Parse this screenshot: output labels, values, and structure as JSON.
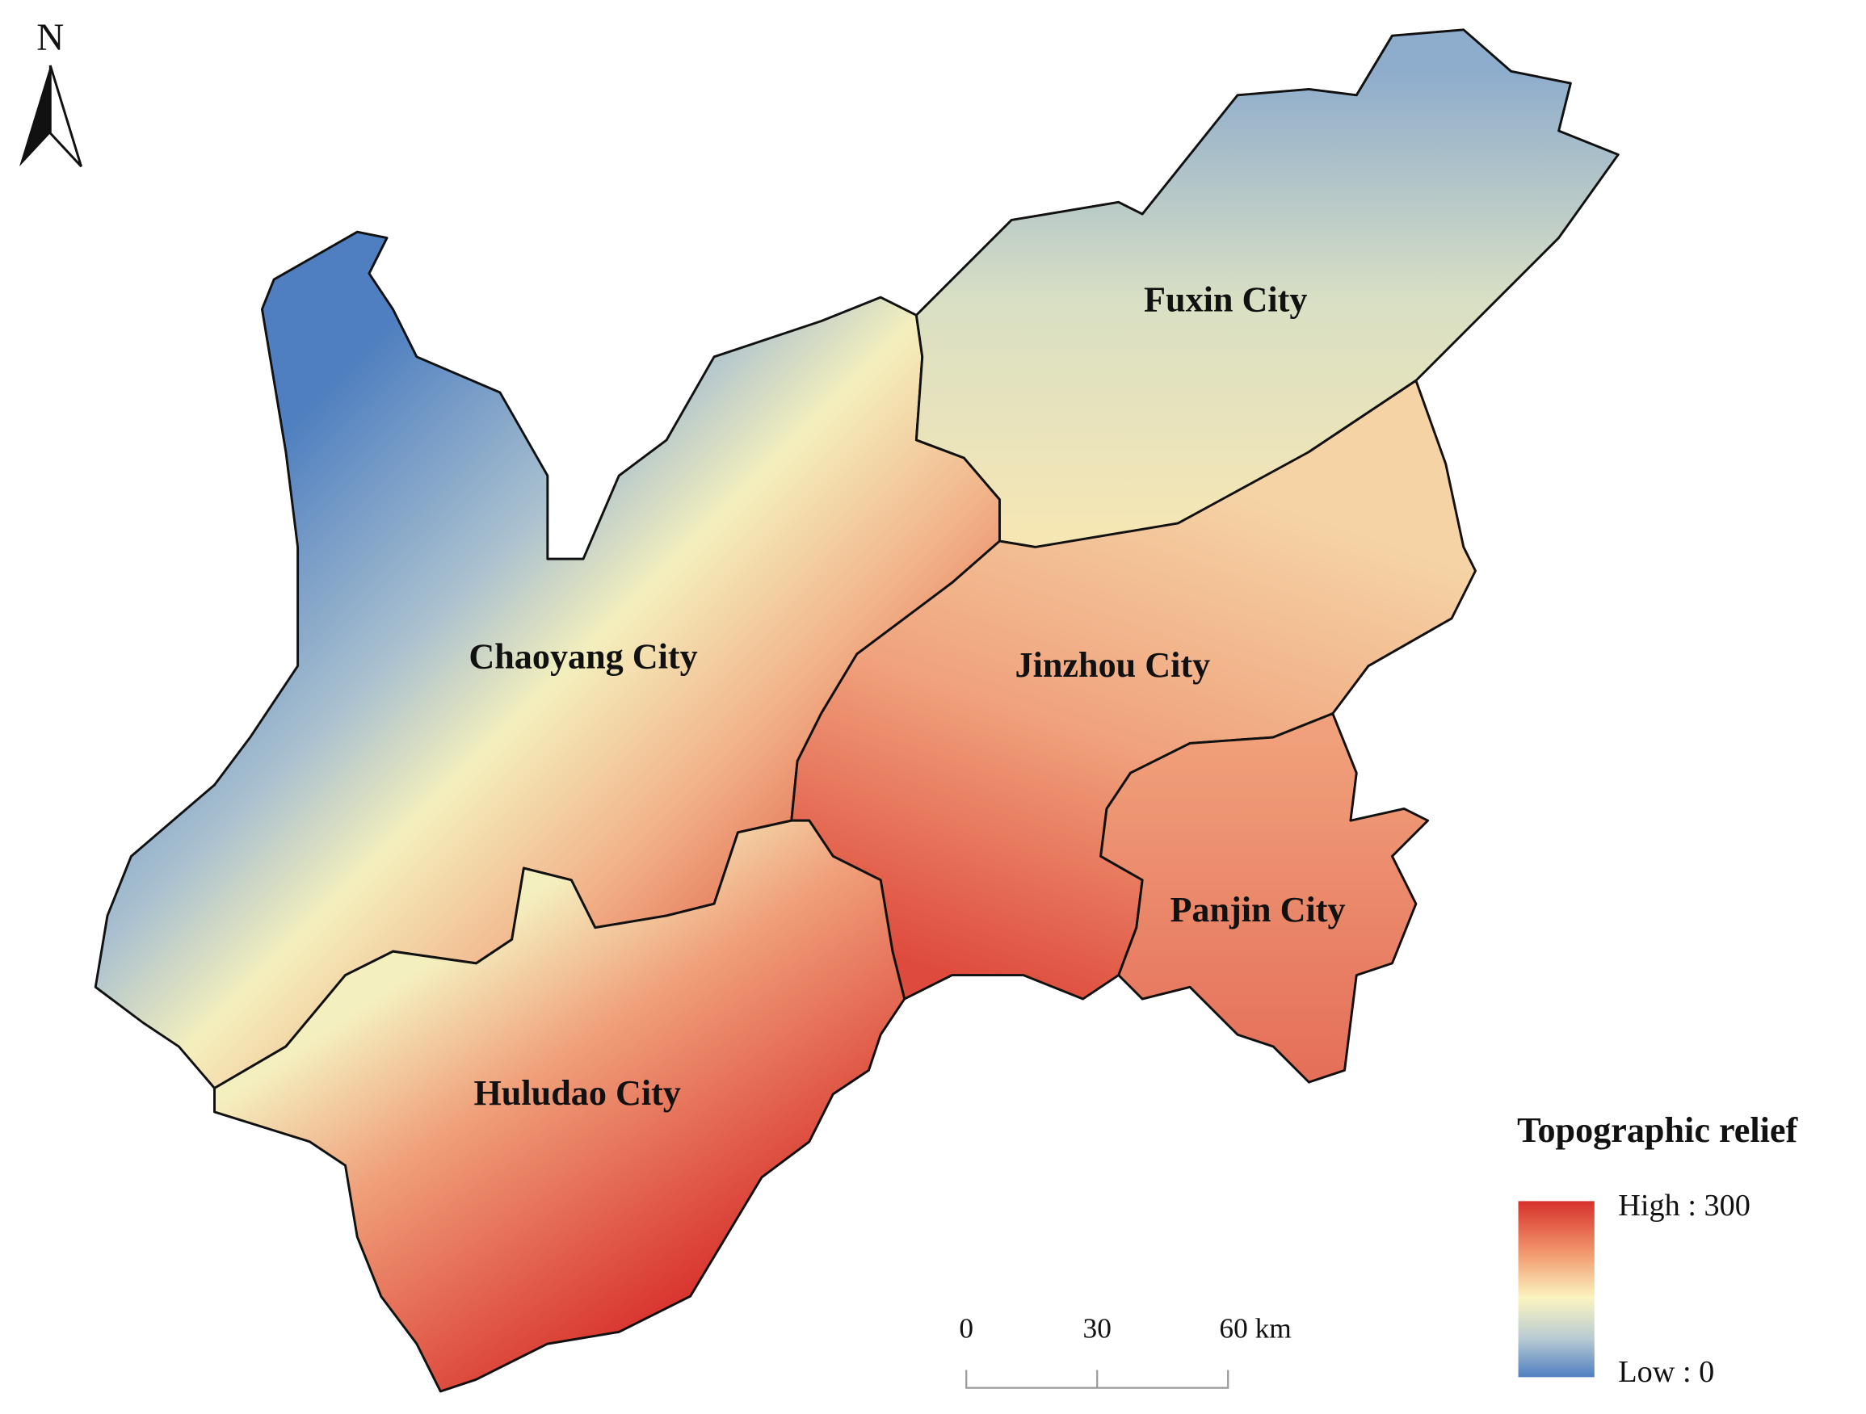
{
  "north_label": "N",
  "cities": [
    {
      "label": "Fuxin City"
    },
    {
      "label": "Chaoyang City"
    },
    {
      "label": "Jinzhou City"
    },
    {
      "label": "Panjin City"
    },
    {
      "label": "Huludao City"
    }
  ],
  "legend": {
    "title": "Topographic relief",
    "high_label": "High : 300",
    "low_label": "Low : 0"
  },
  "scale_bar": {
    "labels": [
      "0",
      "30",
      "60 km"
    ]
  }
}
